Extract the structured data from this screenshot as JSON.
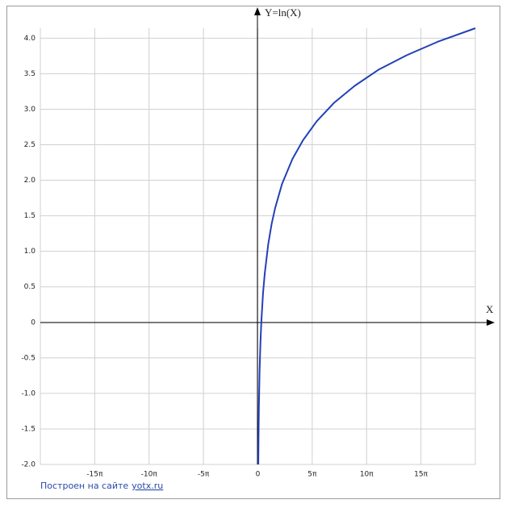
{
  "chart_data": {
    "type": "line",
    "y_axis_label": "Y=ln(X)",
    "x_axis_label": "X",
    "x": [
      0.135,
      0.14,
      0.2,
      0.3,
      0.5,
      0.75,
      1,
      1.5,
      2,
      3,
      4,
      5,
      7,
      10,
      13,
      17,
      22,
      28,
      35,
      43,
      52,
      62.83
    ],
    "values": [
      -2.0,
      -1.97,
      -1.61,
      -1.2,
      -0.69,
      -0.29,
      0,
      0.41,
      0.69,
      1.1,
      1.39,
      1.61,
      1.95,
      2.3,
      2.56,
      2.83,
      3.09,
      3.33,
      3.56,
      3.76,
      3.95,
      4.14
    ],
    "color": "#2340b8",
    "xlim": [
      -62.83,
      62.83
    ],
    "ylim": [
      -2.0,
      4.14
    ],
    "xticks": [
      {
        "value": -47.12,
        "label": "-15π"
      },
      {
        "value": -31.42,
        "label": "-10π"
      },
      {
        "value": -15.71,
        "label": "-5π"
      },
      0,
      {
        "value": 15.71,
        "label": "5π"
      },
      {
        "value": 31.42,
        "label": "10π"
      },
      {
        "value": 47.12,
        "label": "15π"
      }
    ],
    "yticks": [
      {
        "value": -2,
        "label": "-2.0"
      },
      -1.5,
      {
        "value": -1,
        "label": "-1.0"
      },
      -0.5,
      0,
      0.5,
      {
        "value": 1,
        "label": "1.0"
      },
      1.5,
      {
        "value": 2,
        "label": "2.0"
      },
      2.5,
      {
        "value": 3,
        "label": "3.0"
      },
      3.5,
      {
        "value": 4,
        "label": "4.0"
      }
    ],
    "grid": true,
    "credit": {
      "text": "Построен на сайте",
      "link": "yotx.ru"
    }
  }
}
